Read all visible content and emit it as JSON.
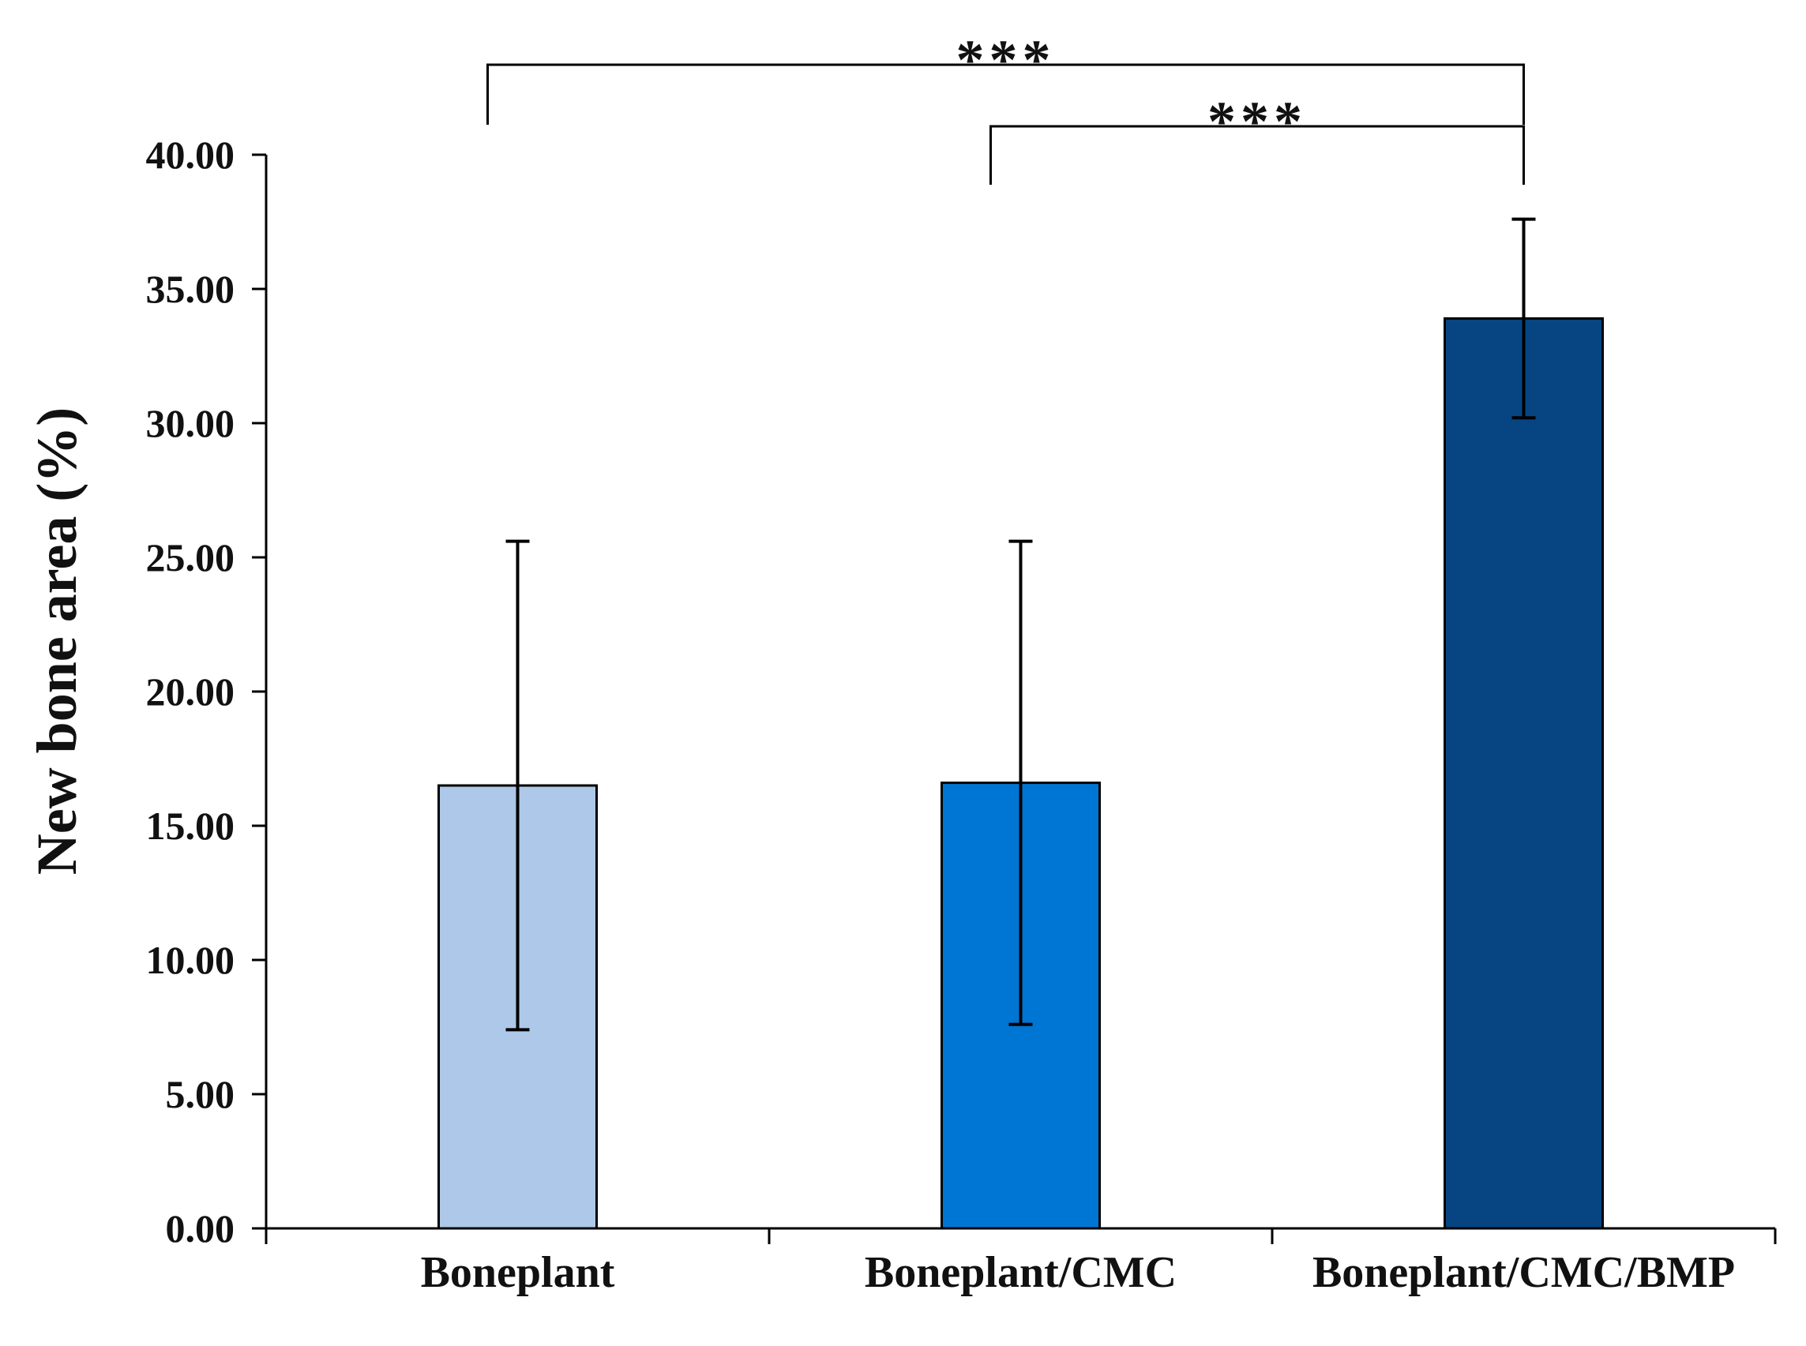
{
  "chart_data": {
    "type": "bar",
    "title": "",
    "xlabel": "",
    "ylabel": "New bone area (%)",
    "ylim": [
      0,
      40
    ],
    "yticks": [
      0,
      5,
      10,
      15,
      20,
      25,
      30,
      35,
      40
    ],
    "ytick_labels": [
      "0.00",
      "5.00",
      "10.00",
      "15.00",
      "20.00",
      "25.00",
      "30.00",
      "35.00",
      "40.00"
    ],
    "categories": [
      "Boneplant",
      "Boneplant/CMC",
      "Boneplant/CMC/BMP"
    ],
    "values": [
      16.5,
      16.6,
      33.9
    ],
    "errors": [
      9.1,
      9.0,
      3.7
    ],
    "colors": [
      "#adc8e8",
      "#0076d4",
      "#064582"
    ],
    "significance": [
      {
        "from": 0,
        "to": 2,
        "label": "***"
      },
      {
        "from": 1,
        "to": 2,
        "label": "***"
      }
    ],
    "grid": false,
    "legend": "none"
  }
}
